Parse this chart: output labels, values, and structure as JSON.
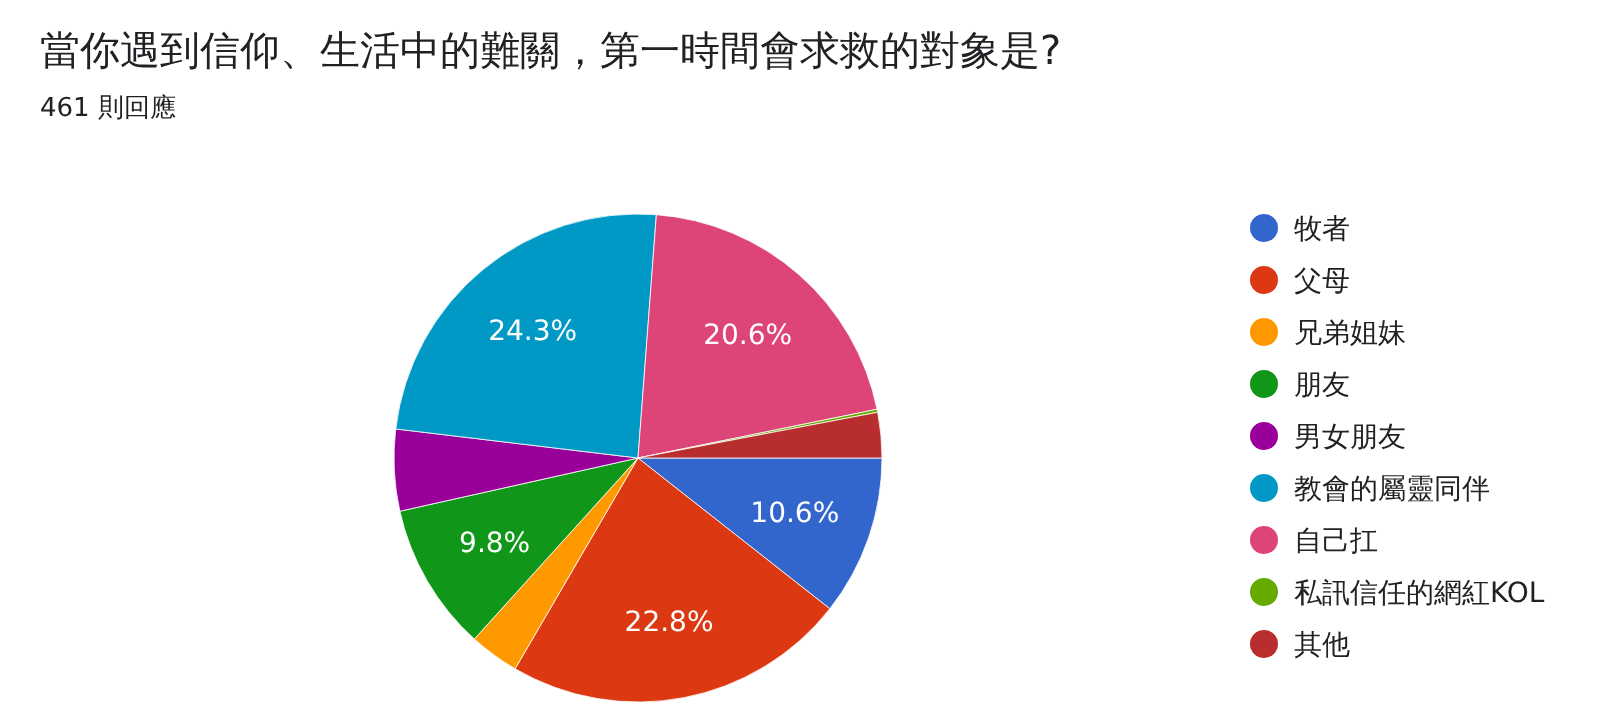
{
  "chart_data": {
    "type": "pie",
    "title": "當你遇到信仰、生活中的難關，第一時間會求救的對象是?",
    "subtitle": "461 則回應",
    "categories": [
      "牧者",
      "父母",
      "兄弟姐妹",
      "朋友",
      "男女朋友",
      "教會的屬靈同伴",
      "自己扛",
      "私訊信任的網紅KOL",
      "其他"
    ],
    "values": [
      10.6,
      22.8,
      3.3,
      9.8,
      5.4,
      24.3,
      20.6,
      0.2,
      3.0
    ],
    "value_labels": [
      "10.6%",
      "22.8%",
      null,
      "9.8%",
      null,
      "24.3%",
      "20.6%",
      null,
      null
    ],
    "colors": [
      "#3366cc",
      "#dc3912",
      "#ff9900",
      "#109618",
      "#990099",
      "#0099c6",
      "#dd4477",
      "#66aa00",
      "#b82e2e"
    ],
    "legend": "right"
  }
}
